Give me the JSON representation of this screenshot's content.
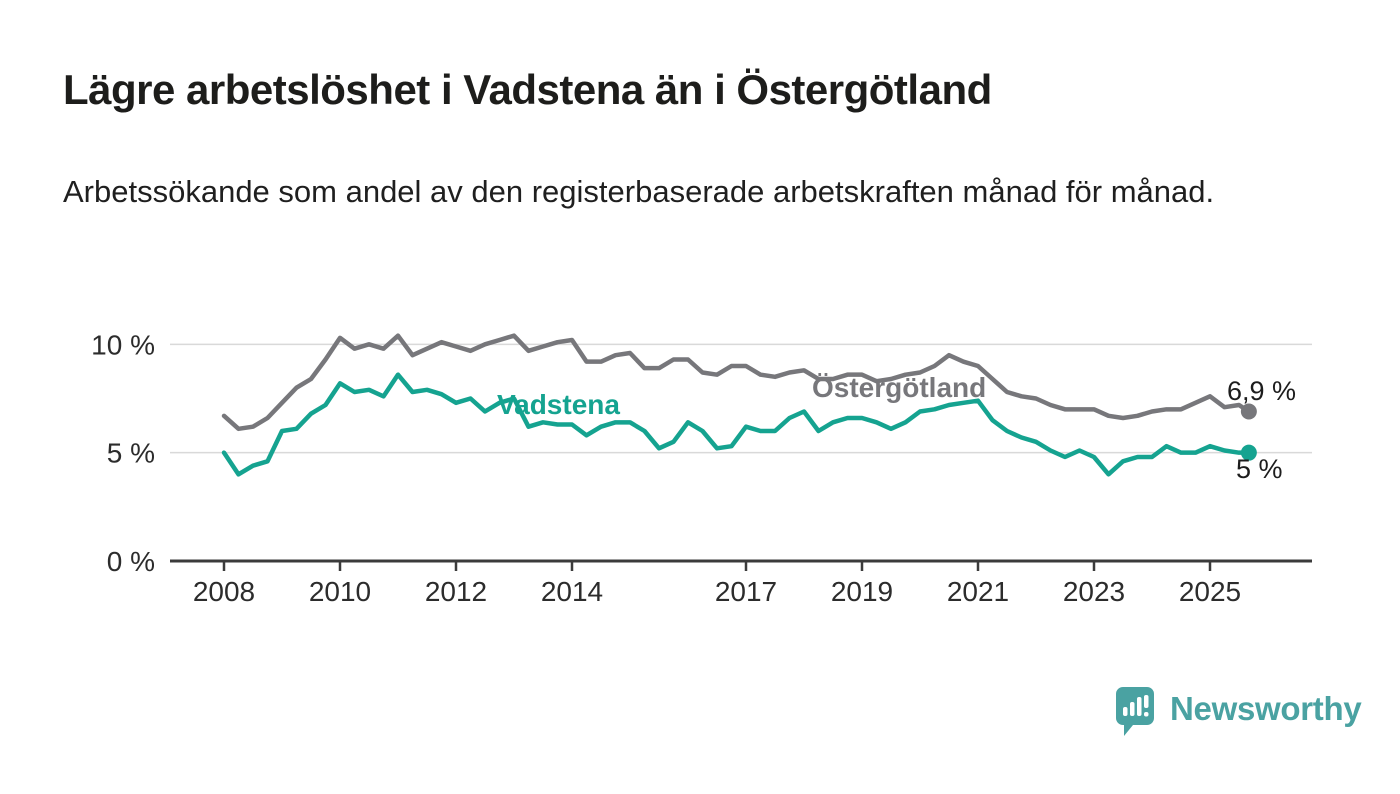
{
  "header": {
    "title": "Lägre arbetslöshet i Vadstena än i Östergötland",
    "subtitle": "Arbetssökande som andel av den registerbaserade arbetskraften månad för månad."
  },
  "chart": {
    "series_labels": {
      "vadstena": "Vadstena",
      "ostergotland": "Östergötland"
    },
    "end_labels": {
      "ostergotland": "6,9 %",
      "vadstena": "5 %"
    },
    "colors": {
      "vadstena": "#15a390",
      "ostergotland": "#77777b",
      "grid": "#d9d9d9",
      "axis": "#3b3b3b",
      "tick_text": "#2c2c2c",
      "value_text": "#1d1d1d"
    }
  },
  "chart_data": {
    "type": "line",
    "title": "Lägre arbetslöshet i Vadstena än i Östergötland",
    "xlabel": "",
    "ylabel": "Arbetssökande som andel av den registerbaserade arbetskraften (%)",
    "ylim": [
      0,
      11
    ],
    "grid": "horizontal",
    "legend": "inline-labels",
    "yticks": [
      {
        "value": 0,
        "label": "0 %"
      },
      {
        "value": 5,
        "label": "5 %"
      },
      {
        "value": 10,
        "label": "10 %"
      }
    ],
    "xticks": [
      {
        "value": 2008,
        "label": "2008"
      },
      {
        "value": 2010,
        "label": "2010"
      },
      {
        "value": 2012,
        "label": "2012"
      },
      {
        "value": 2014,
        "label": "2014"
      },
      {
        "value": 2017,
        "label": "2017"
      },
      {
        "value": 2019,
        "label": "2019"
      },
      {
        "value": 2021,
        "label": "2021"
      },
      {
        "value": 2023,
        "label": "2023"
      },
      {
        "value": 2025,
        "label": "2025"
      }
    ],
    "x": [
      2008.0,
      2008.25,
      2008.5,
      2008.75,
      2009.0,
      2009.25,
      2009.5,
      2009.75,
      2010.0,
      2010.25,
      2010.5,
      2010.75,
      2011.0,
      2011.25,
      2011.5,
      2011.75,
      2012.0,
      2012.25,
      2012.5,
      2012.75,
      2013.0,
      2013.25,
      2013.5,
      2013.75,
      2014.0,
      2014.25,
      2014.5,
      2014.75,
      2015.0,
      2015.25,
      2015.5,
      2015.75,
      2016.0,
      2016.25,
      2016.5,
      2016.75,
      2017.0,
      2017.25,
      2017.5,
      2017.75,
      2018.0,
      2018.25,
      2018.5,
      2018.75,
      2019.0,
      2019.25,
      2019.5,
      2019.75,
      2020.0,
      2020.25,
      2020.5,
      2020.75,
      2021.0,
      2021.25,
      2021.5,
      2021.75,
      2022.0,
      2022.25,
      2022.5,
      2022.75,
      2023.0,
      2023.25,
      2023.5,
      2023.75,
      2024.0,
      2024.25,
      2024.5,
      2024.75,
      2025.0,
      2025.25,
      2025.5,
      2025.67
    ],
    "series": [
      {
        "name": "Östergötland",
        "color": "#77777b",
        "end_label": "6,9 %",
        "last_value": 6.9,
        "values": [
          6.7,
          6.1,
          6.2,
          6.6,
          7.3,
          8.0,
          8.4,
          9.3,
          10.3,
          9.8,
          10.0,
          9.8,
          10.4,
          9.5,
          9.8,
          10.1,
          9.9,
          9.7,
          10.0,
          10.2,
          10.4,
          9.7,
          9.9,
          10.1,
          10.2,
          9.2,
          9.2,
          9.5,
          9.6,
          8.9,
          8.9,
          9.3,
          9.3,
          8.7,
          8.6,
          9.0,
          9.0,
          8.6,
          8.5,
          8.7,
          8.8,
          8.4,
          8.4,
          8.6,
          8.6,
          8.3,
          8.4,
          8.6,
          8.7,
          9.0,
          9.5,
          9.2,
          9.0,
          8.4,
          7.8,
          7.6,
          7.5,
          7.2,
          7.0,
          7.0,
          7.0,
          6.7,
          6.6,
          6.7,
          6.9,
          7.0,
          7.0,
          7.3,
          7.6,
          7.1,
          7.2,
          6.9
        ]
      },
      {
        "name": "Vadstena",
        "color": "#15a390",
        "end_label": "5 %",
        "last_value": 5.0,
        "values": [
          5.0,
          4.0,
          4.4,
          4.6,
          6.0,
          6.1,
          6.8,
          7.2,
          8.2,
          7.8,
          7.9,
          7.6,
          8.6,
          7.8,
          7.9,
          7.7,
          7.3,
          7.5,
          6.9,
          7.3,
          7.5,
          6.2,
          6.4,
          6.3,
          6.3,
          5.8,
          6.2,
          6.4,
          6.4,
          6.0,
          5.2,
          5.5,
          6.4,
          6.0,
          5.2,
          5.3,
          6.2,
          6.0,
          6.0,
          6.6,
          6.9,
          6.0,
          6.4,
          6.6,
          6.6,
          6.4,
          6.1,
          6.4,
          6.9,
          7.0,
          7.2,
          7.3,
          7.4,
          6.5,
          6.0,
          5.7,
          5.5,
          5.1,
          4.8,
          5.1,
          4.8,
          4.0,
          4.6,
          4.8,
          4.8,
          5.3,
          5.0,
          5.0,
          5.3,
          5.1,
          5.0,
          5.0
        ]
      }
    ]
  },
  "footer": {
    "brand": "Newsworthy"
  }
}
